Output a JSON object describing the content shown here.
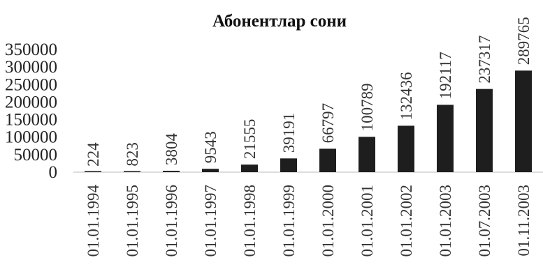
{
  "chart_data": {
    "type": "bar",
    "title": "Абонентлар сони",
    "categories": [
      "01.01.1994",
      "01.01.1995",
      "01.01.1996",
      "01.01.1997",
      "01.01.1998",
      "01.01.1999",
      "01.01.2000",
      "01.01.2001",
      "01.01.2002",
      "01.01.2003",
      "01.07.2003",
      "01.11.2003"
    ],
    "values": [
      224,
      823,
      3804,
      9543,
      21555,
      39191,
      66797,
      100789,
      132436,
      192117,
      237317,
      289765
    ],
    "data_labels": [
      "224",
      "823",
      "3804",
      "9543",
      "21555",
      "39191",
      "66797",
      "100789",
      "132436",
      "192117",
      "237317",
      "289765"
    ],
    "y_ticks": [
      "0",
      "50000",
      "100000",
      "150000",
      "200000",
      "250000",
      "300000",
      "350000"
    ],
    "ylim": [
      0,
      350000
    ],
    "xlabel": "",
    "ylabel": "",
    "grid": false,
    "legend": "none",
    "bar_color": "#1e1e1e"
  }
}
